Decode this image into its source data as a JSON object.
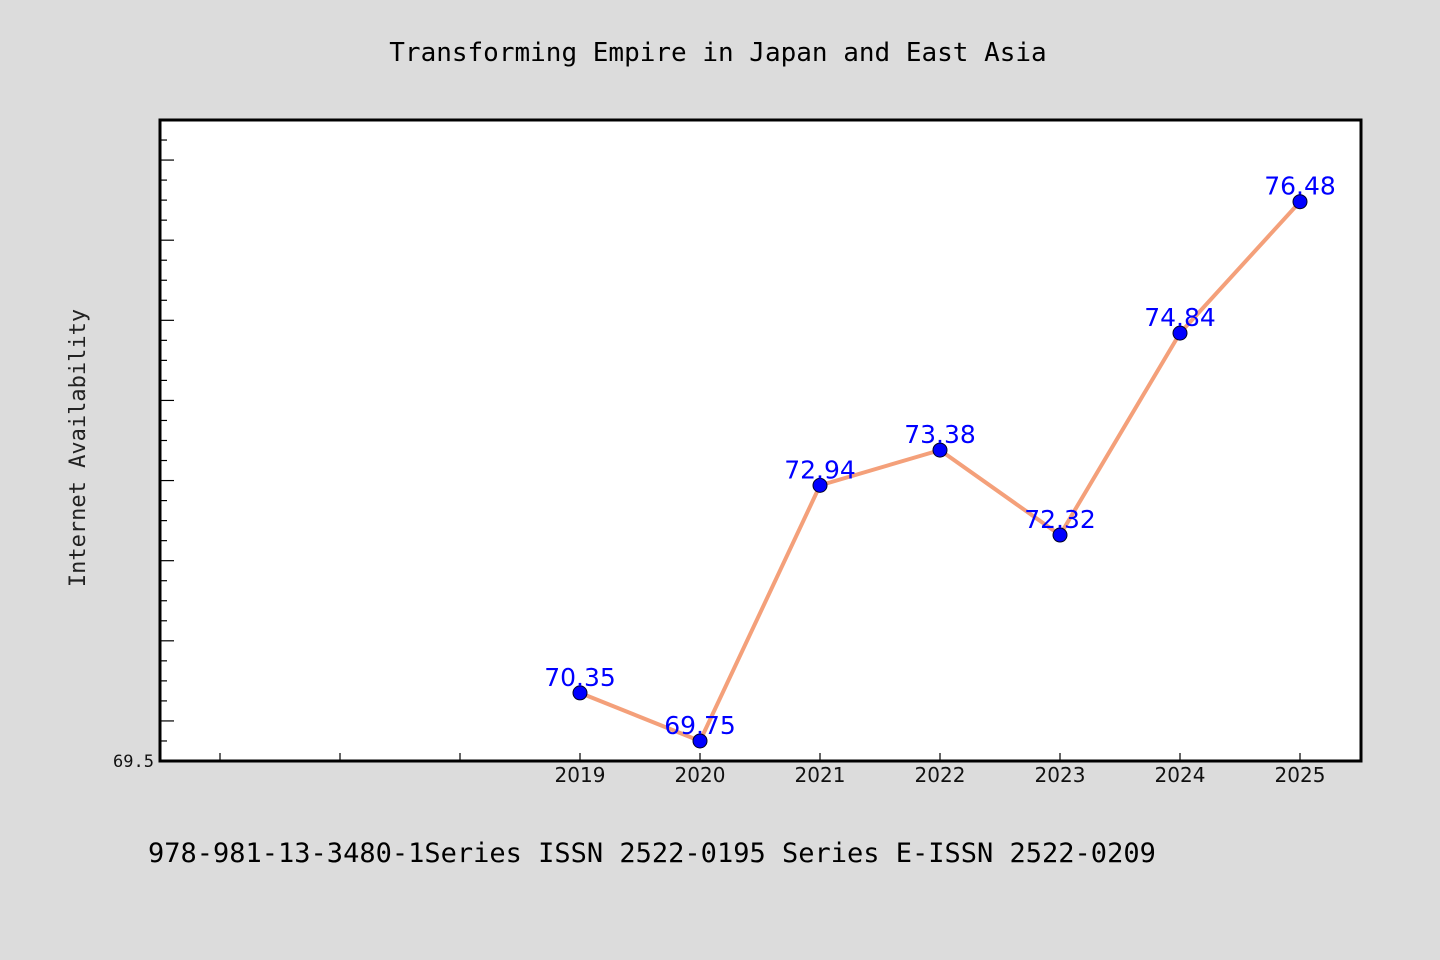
{
  "chart_data": {
    "type": "line",
    "title": "Transforming Empire in Japan and East Asia",
    "xlabel": "",
    "ylabel": "Internet Availability",
    "categories": [
      "2019",
      "2020",
      "2021",
      "2022",
      "2023",
      "2024",
      "2025"
    ],
    "series": [
      {
        "values": [
          70.35,
          69.75,
          72.94,
          73.38,
          72.32,
          74.84,
          76.48
        ],
        "data_labels": [
          "70.35",
          "69.75",
          "72.94",
          "73.38",
          "72.32",
          "74.84",
          "76.48"
        ],
        "line_color": "#f4a07a",
        "marker_color": "#0000ff",
        "label_color": "#0000ff"
      }
    ],
    "y_tick_labels": [
      "69.5"
    ],
    "ylim": [
      69.5,
      77.5
    ],
    "grid": false,
    "legend": "none"
  },
  "footer": {
    "text": "978-981-13-3480-1Series ISSN 2522-0195 Series E-ISSN 2522-0209"
  },
  "colors": {
    "background": "#dcdcdc",
    "plot_area": "#ffffff"
  }
}
